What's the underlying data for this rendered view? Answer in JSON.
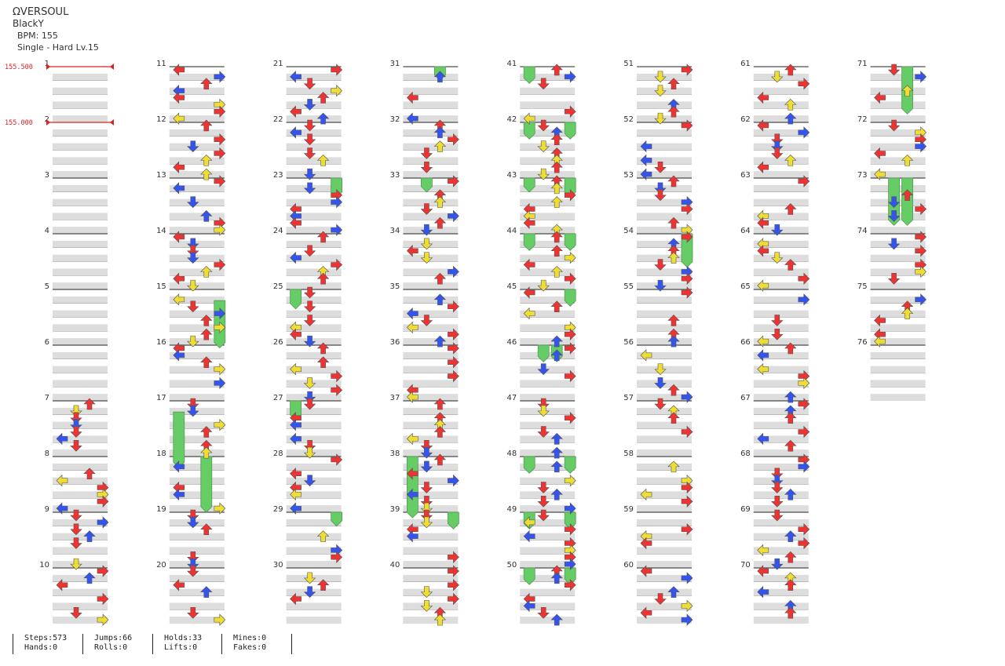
{
  "song": {
    "title": "ΩVERSOUL",
    "artist": "BlackY",
    "bpm_text": "BPM: 155",
    "difficulty_text": "Single - Hard  Lv.15"
  },
  "bpm_changes": [
    {
      "measure": 1,
      "label": "155.500"
    },
    {
      "measure": 2,
      "label": "155.000"
    }
  ],
  "chart": {
    "total_measures": 76,
    "measures_per_column": 10,
    "mine_color": "#aa33dd",
    "hold_color": "#66cc66",
    "colors": {
      "left": "#3355ee",
      "down": "#3355ee",
      "up": "#ee3333",
      "right": "#ee3333",
      "quarter": "#ee3333",
      "eighth": "#3355ee",
      "sixteenth": "#eedd33",
      "bpm": "#dd2222"
    }
  },
  "stats": {
    "steps": "Steps:573",
    "hands": "Hands:0",
    "jumps": "Jumps:66",
    "rolls": "Rolls:0",
    "holds": "Holds:33",
    "lifts": "Lifts:0",
    "mines": "Mines:0",
    "fakes": "Fakes:0"
  }
}
